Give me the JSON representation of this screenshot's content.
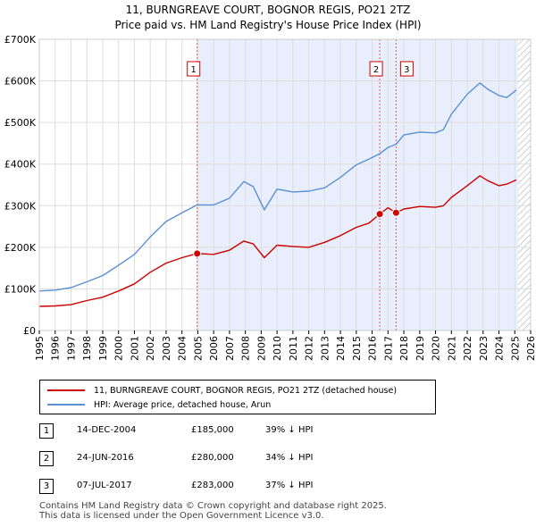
{
  "chart_data": {
    "type": "line",
    "title": "11, BURNGREAVE COURT, BOGNOR REGIS, PO21 2TZ",
    "subtitle": "Price paid vs. HM Land Registry's House Price Index (HPI)",
    "xlabel": "",
    "ylabel": "",
    "xlim": [
      1995,
      2026
    ],
    "ylim": [
      0,
      700000
    ],
    "x_ticks": [
      1995,
      1996,
      1997,
      1998,
      1999,
      2000,
      2001,
      2002,
      2003,
      2004,
      2005,
      2006,
      2007,
      2008,
      2009,
      2010,
      2011,
      2012,
      2013,
      2014,
      2015,
      2016,
      2017,
      2018,
      2019,
      2020,
      2021,
      2022,
      2023,
      2024,
      2025,
      2026
    ],
    "y_ticks": [
      {
        "value": 0,
        "label": "£0"
      },
      {
        "value": 100000,
        "label": "£100K"
      },
      {
        "value": 200000,
        "label": "£200K"
      },
      {
        "value": 300000,
        "label": "£300K"
      },
      {
        "value": 400000,
        "label": "£400K"
      },
      {
        "value": 500000,
        "label": "£500K"
      },
      {
        "value": 600000,
        "label": "£600K"
      },
      {
        "value": 700000,
        "label": "£700K"
      }
    ],
    "grid": true,
    "shaded_region": {
      "x_start": 2004.96,
      "x_end": 2025.2
    },
    "hatched_region": {
      "x_start": 2025.2,
      "x_end": 2026
    },
    "series": [
      {
        "name": "11, BURNGREAVE COURT, BOGNOR REGIS, PO21 2TZ (detached house)",
        "color": "#cc0000",
        "x": [
          1995.0,
          1996.0,
          1997.0,
          1998.0,
          1999.0,
          2000.0,
          2001.0,
          2002.0,
          2003.0,
          2004.0,
          2004.96,
          2006.0,
          2007.0,
          2007.9,
          2008.5,
          2009.2,
          2010.0,
          2011.0,
          2012.0,
          2013.0,
          2014.0,
          2015.0,
          2015.8,
          2016.48,
          2017.0,
          2017.51,
          2018.0,
          2019.0,
          2020.0,
          2020.5,
          2021.0,
          2022.0,
          2022.8,
          2023.3,
          2024.0,
          2024.5,
          2025.1
        ],
        "values": [
          58000,
          59000,
          62000,
          72000,
          80000,
          95000,
          112000,
          140000,
          162000,
          175000,
          185000,
          183000,
          193000,
          215000,
          208000,
          175000,
          205000,
          202000,
          200000,
          212000,
          228000,
          248000,
          258000,
          280000,
          295000,
          283000,
          292000,
          298000,
          296000,
          300000,
          320000,
          348000,
          372000,
          360000,
          348000,
          352000,
          362000
        ]
      },
      {
        "name": "HPI: Average price, detached house, Arun",
        "color": "#5b8fd6",
        "x": [
          1995.0,
          1996.0,
          1997.0,
          1998.0,
          1999.0,
          2000.0,
          2001.0,
          2002.0,
          2003.0,
          2004.0,
          2004.96,
          2006.0,
          2007.0,
          2007.9,
          2008.5,
          2009.2,
          2010.0,
          2011.0,
          2012.0,
          2013.0,
          2014.0,
          2015.0,
          2015.8,
          2016.48,
          2017.0,
          2017.51,
          2018.0,
          2019.0,
          2020.0,
          2020.5,
          2021.0,
          2022.0,
          2022.8,
          2023.3,
          2024.0,
          2024.5,
          2025.1
        ],
        "values": [
          95000,
          97000,
          103000,
          117000,
          132000,
          157000,
          183000,
          225000,
          262000,
          283000,
          302000,
          302000,
          318000,
          358000,
          346000,
          290000,
          340000,
          333000,
          335000,
          343000,
          368000,
          398000,
          412000,
          425000,
          440000,
          448000,
          470000,
          477000,
          475000,
          483000,
          520000,
          568000,
          595000,
          580000,
          565000,
          560000,
          578000
        ]
      }
    ],
    "annotations": [
      {
        "label": "1",
        "x": 2004.96,
        "value": 185000
      },
      {
        "label": "2",
        "x": 2016.48,
        "value": 280000
      },
      {
        "label": "3",
        "x": 2017.51,
        "value": 283000
      }
    ]
  },
  "legend": {
    "items": [
      {
        "label": "11, BURNGREAVE COURT, BOGNOR REGIS, PO21 2TZ (detached house)",
        "color": "#cc0000"
      },
      {
        "label": "HPI: Average price, detached house, Arun",
        "color": "#5b8fd6"
      }
    ]
  },
  "transactions": [
    {
      "num": "1",
      "date": "14-DEC-2004",
      "price": "£185,000",
      "pct": "39% ↓ HPI"
    },
    {
      "num": "2",
      "date": "24-JUN-2016",
      "price": "£280,000",
      "pct": "34% ↓ HPI"
    },
    {
      "num": "3",
      "date": "07-JUL-2017",
      "price": "£283,000",
      "pct": "37% ↓ HPI"
    }
  ],
  "footer": {
    "line1": "Contains HM Land Registry data © Crown copyright and database right 2025.",
    "line2": "This data is licensed under the Open Government Licence v3.0."
  }
}
